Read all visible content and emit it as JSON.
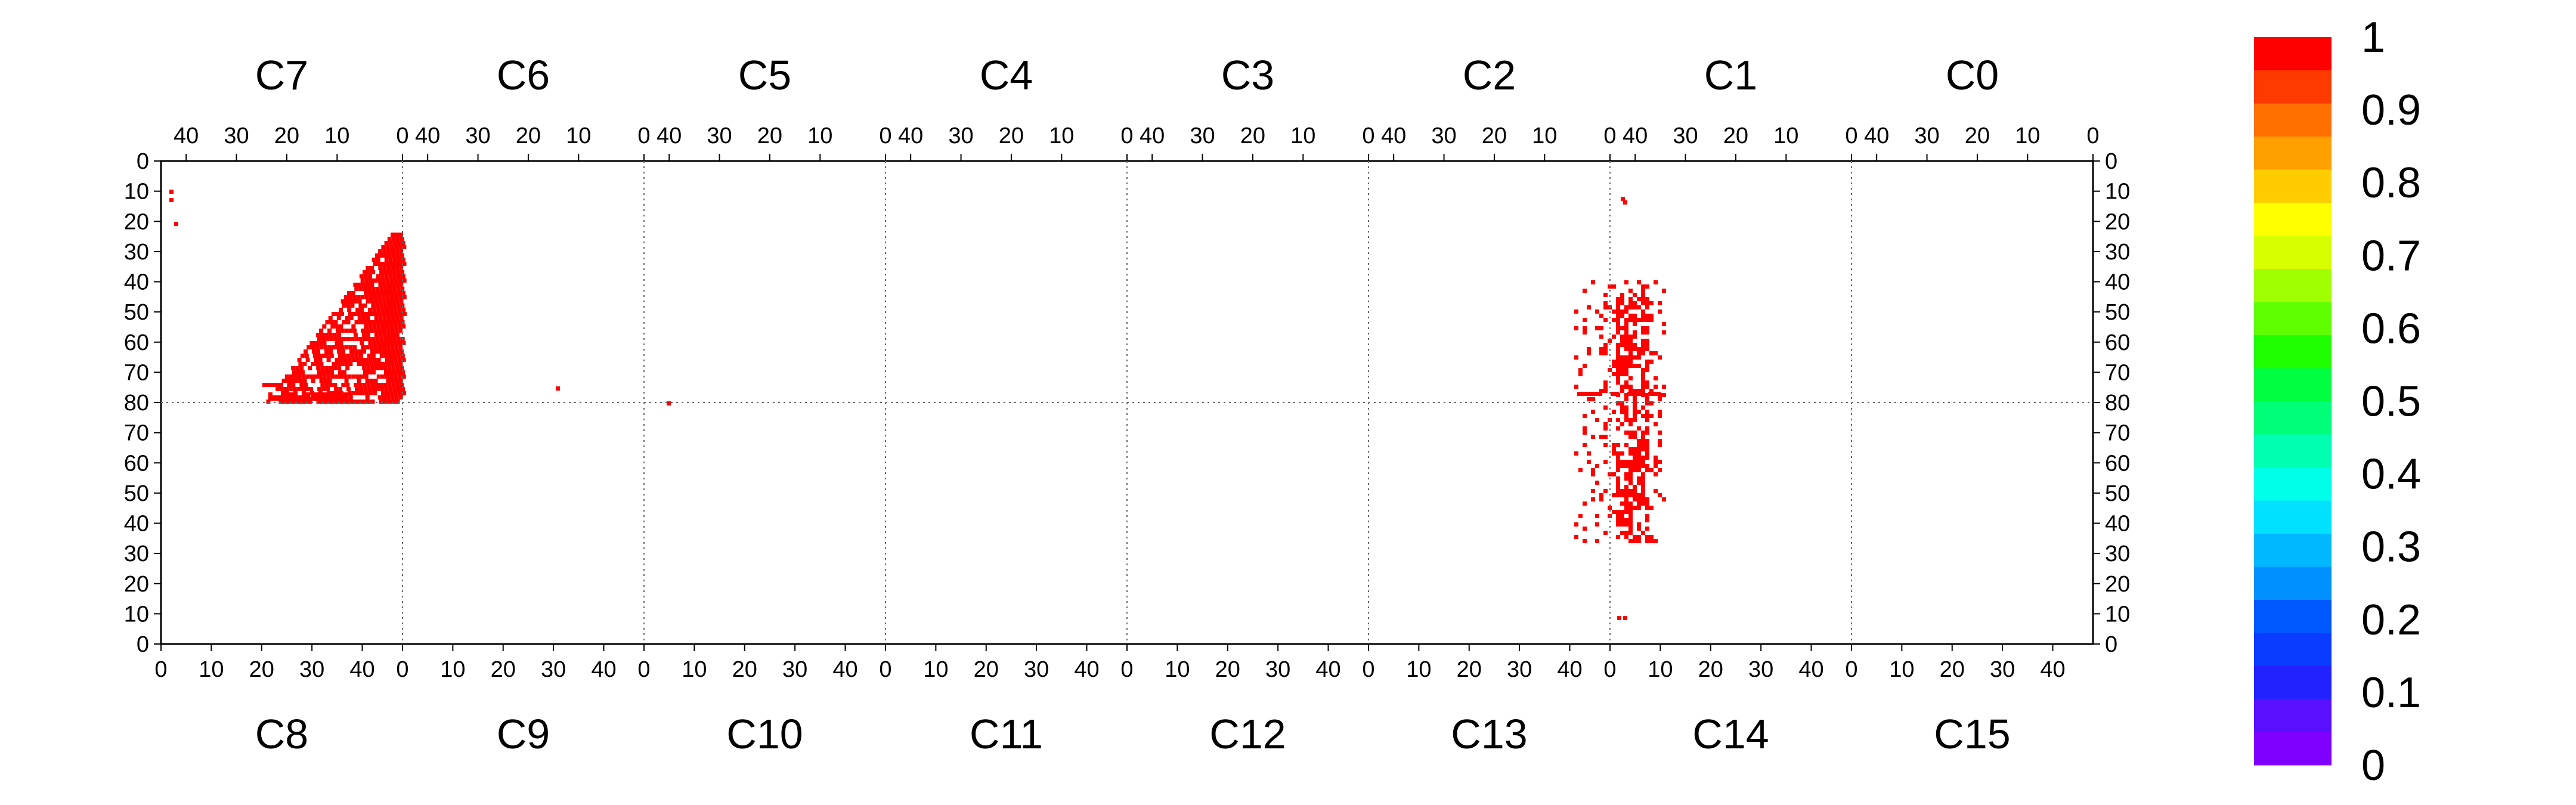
{
  "chart_data": {
    "type": "heatmap",
    "title": "",
    "xlabel": "",
    "ylabel": "",
    "top_chips": [
      "C7",
      "C6",
      "C5",
      "C4",
      "C3",
      "C2",
      "C1",
      "C0"
    ],
    "bottom_chips": [
      "C8",
      "C9",
      "C10",
      "C11",
      "C12",
      "C13",
      "C14",
      "C15"
    ],
    "chip_x_ticks_top": [
      40,
      30,
      20,
      10,
      0
    ],
    "chip_x_ticks_bottom": [
      0,
      10,
      20,
      30,
      40
    ],
    "bottom_x_ticks_first": [
      0,
      10,
      20,
      40,
      0
    ],
    "bottom_x_ticks_c9": [
      10,
      20,
      30,
      40,
      0
    ],
    "bottom_x_ticks_c13": [
      10,
      20,
      30,
      40
    ],
    "bottom_x_ticks_c14": [
      0,
      10,
      20,
      30,
      40
    ],
    "top_x_ticks_c6": [
      40,
      30,
      20,
      10
    ],
    "top_x_ticks_c2": [
      40,
      30,
      20,
      10,
      0
    ],
    "y_ticks_top": [
      0,
      10,
      20,
      30,
      40,
      50,
      60,
      70,
      80
    ],
    "y_ticks_bottom": [
      80,
      70,
      60,
      50,
      40,
      30,
      20,
      10,
      0
    ],
    "colorbar": {
      "labels": [
        "1",
        "0.9",
        "0.8",
        "0.7",
        "0.6",
        "0.5",
        "0.4",
        "0.3",
        "0.2",
        "0.1",
        "0"
      ],
      "colors": [
        "#7f00ff",
        "#5a10ff",
        "#2222ff",
        "#0a3cff",
        "#0058ff",
        "#0090ff",
        "#00b8ff",
        "#00e0ff",
        "#00ffe8",
        "#00ffb0",
        "#00ff78",
        "#00ff40",
        "#20ff00",
        "#60ff00",
        "#a0ff00",
        "#d8ff00",
        "#ffff00",
        "#ffcc00",
        "#ffa000",
        "#ff7000",
        "#ff3a00",
        "#ff0000"
      ],
      "ticks": [
        1,
        0.9,
        0.8,
        0.7,
        0.6,
        0.5,
        0.4,
        0.3,
        0.2,
        0.1,
        0
      ]
    },
    "hit_regions": [
      {
        "name": "C7/C8 triangle",
        "value": 1
      },
      {
        "name": "C13/C14 strip",
        "value": 1
      }
    ]
  }
}
